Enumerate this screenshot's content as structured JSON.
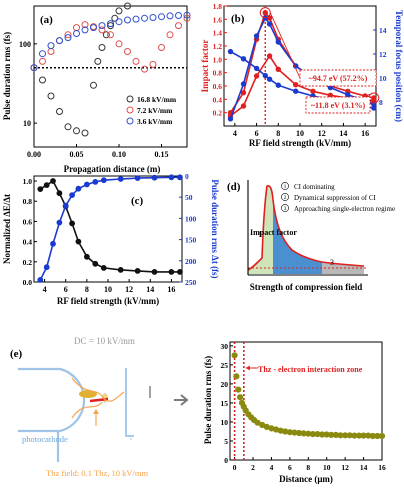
{
  "chart_data": [
    {
      "type": "scatter",
      "panel_label": "(a)",
      "xlabel": "Propagation distance (m)",
      "ylabel": "Pulse duration rms (fs)",
      "xlim": [
        0,
        0.18
      ],
      "ylim": [
        5,
        300
      ],
      "yscale": "log",
      "xticks": [
        "0.00",
        "0.05",
        "0.10",
        "0.15"
      ],
      "xtick_values": [
        0,
        0.05,
        0.1,
        0.15
      ],
      "yticks": [
        "10",
        "100"
      ],
      "ytick_values": [
        10,
        100
      ],
      "hline": 50,
      "legend": "bottom-right",
      "series": [
        {
          "name": "16.8 kV/mm",
          "color": "#333333",
          "x": [
            0,
            0.01,
            0.02,
            0.03,
            0.04,
            0.05,
            0.06,
            0.07,
            0.075,
            0.08,
            0.085,
            0.09,
            0.095,
            0.1,
            0.11,
            0.12
          ],
          "y": [
            50,
            35,
            22,
            14,
            9,
            8,
            7.5,
            30,
            60,
            90,
            130,
            170,
            210,
            260,
            300,
            320
          ]
        },
        {
          "name": "7.2 kV/mm",
          "color": "#e05050",
          "x": [
            0,
            0.01,
            0.02,
            0.03,
            0.04,
            0.05,
            0.06,
            0.07,
            0.08,
            0.09,
            0.1,
            0.11,
            0.12,
            0.13,
            0.14,
            0.15,
            0.16,
            0.17,
            0.18
          ],
          "y": [
            50,
            60,
            80,
            110,
            130,
            160,
            175,
            165,
            150,
            130,
            100,
            80,
            60,
            48,
            55,
            90,
            130,
            170,
            210
          ]
        },
        {
          "name": "3.6 kV/mm",
          "color": "#3050d0",
          "x": [
            0,
            0.01,
            0.02,
            0.03,
            0.04,
            0.05,
            0.06,
            0.07,
            0.08,
            0.09,
            0.1,
            0.11,
            0.12,
            0.13,
            0.14,
            0.15,
            0.16,
            0.17,
            0.18
          ],
          "y": [
            50,
            75,
            95,
            110,
            120,
            135,
            150,
            160,
            170,
            180,
            190,
            200,
            205,
            210,
            215,
            220,
            225,
            228,
            230
          ]
        }
      ]
    },
    {
      "type": "line",
      "panel_label": "(b)",
      "xlabel": "RF field strength (kV/mm)",
      "ylabel": "Impact factor",
      "ylabel2": "Temporal focus position (cm)",
      "xlim": [
        3,
        17
      ],
      "ylim": [
        0,
        1.8
      ],
      "ylim2": [
        6,
        16
      ],
      "xticks": [
        "4",
        "6",
        "8",
        "10",
        "12",
        "14",
        "16"
      ],
      "yticks": [
        "0.2",
        "0.4",
        "0.6",
        "0.8",
        "1.0",
        "1.2",
        "1.4",
        "1.6",
        "1.8"
      ],
      "yticks2": [
        "8",
        "10",
        "12",
        "14"
      ],
      "vline": 6.8,
      "annotations": [
        "~94.7 eV (57.2%)",
        "~11.8 eV (3.1%)"
      ],
      "series": [
        {
          "name": "Impact factor",
          "color": "#e02020",
          "axis": "left",
          "x": [
            3.6,
            4.8,
            6,
            6.8,
            7.2,
            8,
            9.6,
            11.2,
            12.8,
            14.4,
            16,
            16.8
          ],
          "y": [
            0.2,
            0.5,
            1.3,
            1.7,
            1.62,
            1.3,
            0.9,
            0.72,
            0.6,
            0.52,
            0.45,
            0.42
          ]
        },
        {
          "name": "Impact factor (alt)",
          "color": "#e02020",
          "axis": "left",
          "x": [
            3.6,
            4.8,
            6,
            7.2,
            8,
            9.6,
            11.2,
            12.8,
            14.4,
            16,
            16.8
          ],
          "y": [
            0.15,
            0.3,
            0.75,
            1.05,
            0.85,
            0.62,
            0.52,
            0.46,
            0.42,
            0.4,
            0.38
          ]
        },
        {
          "name": "Temporal focus position",
          "color": "#1a3ad0",
          "axis": "right",
          "x": [
            3.6,
            4.8,
            6,
            6.8,
            7.2,
            8,
            9.6,
            11.2,
            12.8,
            14.4,
            16,
            16.8
          ],
          "y": [
            12.2,
            11.6,
            10.8,
            10.2,
            9.9,
            9.4,
            8.9,
            8.5,
            8.2,
            7.9,
            7.6,
            7.5
          ]
        },
        {
          "name": "Temporal focus position (alt)",
          "color": "#1a3ad0",
          "axis": "right",
          "x": [
            3.6,
            4.8,
            6,
            6.8,
            7.2,
            8,
            9.6,
            11.2,
            12.8,
            14.4,
            16,
            16.8
          ],
          "y": [
            6.6,
            9.5,
            13.5,
            15.0,
            14.5,
            13.0,
            11.0,
            10.0,
            9.2,
            8.6,
            8.1,
            7.8
          ]
        }
      ]
    },
    {
      "type": "line",
      "panel_label": "(c)",
      "xlabel": "RF field strength (kV/mm)",
      "ylabel": "Normalized ΔE/Δt",
      "ylabel2": "Pulse duration rms Δt (fs)",
      "xlim": [
        3,
        17
      ],
      "ylim": [
        0,
        1.05
      ],
      "ylim2": [
        250,
        0
      ],
      "xticks": [
        "4",
        "6",
        "8",
        "10",
        "12",
        "14",
        "16"
      ],
      "yticks": [
        "0.0",
        "0.2",
        "0.4",
        "0.6",
        "0.8",
        "1.0"
      ],
      "yticks2": [
        "0",
        "50",
        "100",
        "150",
        "200",
        "250"
      ],
      "series": [
        {
          "name": "Normalized ΔE/Δt",
          "color": "#111111",
          "axis": "left",
          "x": [
            3.6,
            4.2,
            4.8,
            5.4,
            6,
            6.6,
            7.2,
            8,
            8.8,
            9.6,
            11.2,
            12.8,
            14.4,
            16,
            16.8
          ],
          "y": [
            0.92,
            0.96,
            1.0,
            0.88,
            0.75,
            0.58,
            0.4,
            0.25,
            0.18,
            0.14,
            0.12,
            0.11,
            0.1,
            0.1,
            0.1
          ]
        },
        {
          "name": "Pulse duration rms Δt",
          "color": "#1a3ad0",
          "axis": "right",
          "x": [
            3.6,
            4.2,
            4.8,
            5.4,
            6,
            6.6,
            7.2,
            8,
            8.8,
            9.6,
            11.2,
            12.8,
            14.4,
            16,
            16.8
          ],
          "y": [
            245,
            215,
            160,
            110,
            70,
            45,
            30,
            20,
            14,
            10,
            7,
            5,
            4,
            3,
            3
          ]
        }
      ]
    },
    {
      "type": "area",
      "panel_label": "(d)",
      "xlabel": "Strength of compression field",
      "ylabel": "Impact factor",
      "regions": [
        {
          "id": "1",
          "label": "CI dominating",
          "color": "#cfe4b8"
        },
        {
          "id": "2",
          "label": "Dynamical suppression of CI",
          "color": "#4a8fd0"
        },
        {
          "id": "3",
          "label": "Approaching single-electron regime",
          "color": "#b8b8b8"
        }
      ]
    },
    {
      "type": "scatter",
      "panel_label": "(e)",
      "xlabel": "Distance (μm)",
      "ylabel": "Pulse duration rms (fs)",
      "xlim": [
        -0.5,
        16
      ],
      "ylim": [
        0,
        31
      ],
      "xticks": [
        "0",
        "2",
        "4",
        "6",
        "8",
        "10",
        "12",
        "14",
        "16"
      ],
      "yticks": [
        "0",
        "5",
        "10",
        "15",
        "20",
        "25",
        "30"
      ],
      "shaded_region": [
        0,
        1
      ],
      "annotation": "Thz - electron interaction zone",
      "series": [
        {
          "name": "Pulse duration",
          "color": "#8a8a10",
          "x": [
            0,
            0.2,
            0.4,
            0.6,
            0.8,
            1,
            1.2,
            1.5,
            1.8,
            2.1,
            2.5,
            3,
            3.5,
            4,
            4.5,
            5,
            5.5,
            6,
            6.5,
            7,
            7.5,
            8,
            8.5,
            9,
            9.5,
            10,
            10.5,
            11,
            11.5,
            12,
            12.5,
            13,
            13.5,
            14,
            14.5,
            15,
            15.5,
            16
          ],
          "y": [
            27.5,
            22,
            18.5,
            16.5,
            15,
            14,
            13,
            12,
            11.2,
            10.5,
            9.8,
            9.2,
            8.7,
            8.3,
            8,
            7.7,
            7.5,
            7.3,
            7.2,
            7.1,
            7.0,
            6.9,
            6.8,
            6.8,
            6.7,
            6.7,
            6.6,
            6.6,
            6.5,
            6.5,
            6.5,
            6.4,
            6.4,
            6.4,
            6.4,
            6.3,
            6.3,
            6.3
          ]
        }
      ]
    }
  ],
  "schematic": {
    "dc_label": "DC = 10 kV/mm",
    "photocathode_label": "photocathode",
    "thz_label": "Thz field: 0.1 Thz, 10 kV/mm"
  },
  "colors": {
    "orange": "#f5a550",
    "red": "#e02020",
    "blue": "#1a3ad0",
    "cathode": "#9fc4e6"
  }
}
